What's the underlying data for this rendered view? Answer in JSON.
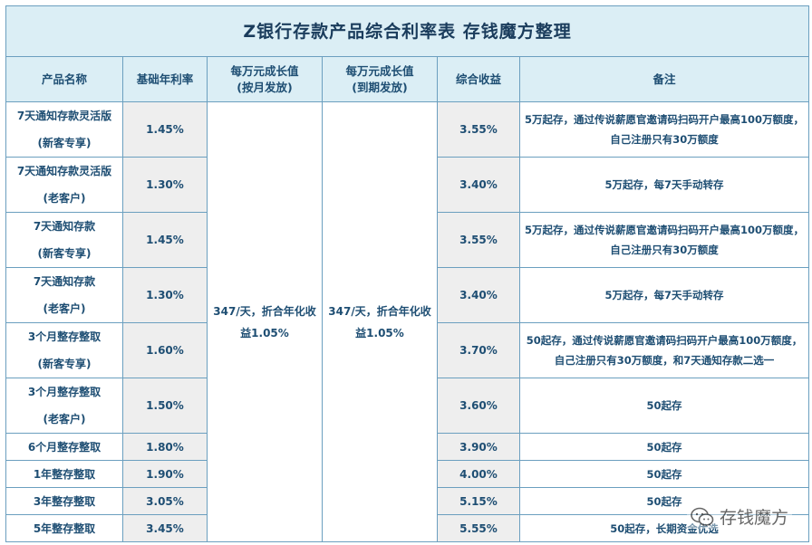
{
  "title": "Z银行存款产品综合利率表  存钱魔方整理",
  "headers": [
    "产品名称",
    "基础年利率",
    "每万元成长值\n(按月发放)",
    "每万元成长值\n(到期发放)",
    "综合收益",
    "备注"
  ],
  "growth_monthly": "347/天，折合年化收益1.05%",
  "growth_maturity": "347/天，折合年化收益1.05%",
  "rows": [
    {
      "name": "7天通知存款灵活版\n(新客专享)",
      "rate": "1.45%",
      "total": "3.55%",
      "note": "5万起存，通过传说薪愿官邀请码扫码开户最高100万额度，自己注册只有30万额度"
    },
    {
      "name": "7天通知存款灵活版\n(老客户)",
      "rate": "1.30%",
      "total": "3.40%",
      "note": "5万起存，每7天手动转存"
    },
    {
      "name": "7天通知存款\n(新客专享)",
      "rate": "1.45%",
      "total": "3.55%",
      "note": "5万起存，通过传说薪愿官邀请码扫码开户最高100万额度，自己注册只有30万额度"
    },
    {
      "name": "7天通知存款\n(老客户)",
      "rate": "1.30%",
      "total": "3.40%",
      "note": "5万起存，每7天手动转存"
    },
    {
      "name": "3个月整存整取\n(新客专享)",
      "rate": "1.60%",
      "total": "3.70%",
      "note": "50起存，通过传说薪愿官邀请码扫码开户最高100万额度，自己注册只有30万额度，和7天通知存款二选一"
    },
    {
      "name": "3个月整存整取\n(老客户)",
      "rate": "1.50%",
      "total": "3.60%",
      "note": "50起存"
    },
    {
      "name": "6个月整存整取",
      "rate": "1.80%",
      "total": "3.90%",
      "note": "50起存"
    },
    {
      "name": "1年整存整取",
      "rate": "1.90%",
      "total": "4.00%",
      "note": "50起存"
    },
    {
      "name": "3年整存整取",
      "rate": "3.05%",
      "total": "5.15%",
      "note": "50起存"
    },
    {
      "name": "5年整存整取",
      "rate": "3.45%",
      "total": "5.55%",
      "note": "50起存，长期资金优选"
    }
  ],
  "watermark": "存钱魔方"
}
